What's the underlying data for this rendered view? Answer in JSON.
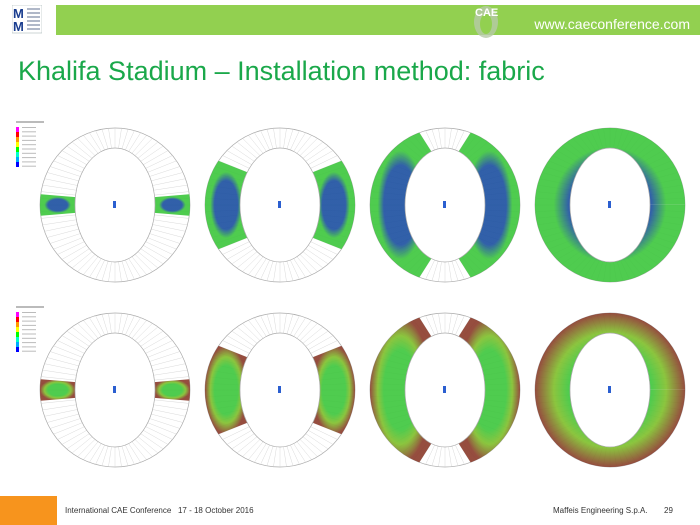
{
  "header": {
    "url": "www.caeconference.com",
    "logo": "MM Maffeis",
    "badge": "CAE"
  },
  "title": "Khalifa Stadium – Installation method: fabric",
  "figure": {
    "rows": 2,
    "columns": 4,
    "colors": {
      "ring_line": "#aaaaaa",
      "blue": "#1b4fa0",
      "green": "#3cc63c",
      "red": "#8a3a2a"
    }
  },
  "footer": {
    "conference": "International CAE Conference",
    "dates": "17 - 18 October 2016",
    "company": "Maffeis Engineering S.p.A.",
    "page": "29"
  },
  "colors": {
    "accent_green": "#92d050",
    "title_green": "#1aa84a",
    "orange": "#f7941d"
  }
}
